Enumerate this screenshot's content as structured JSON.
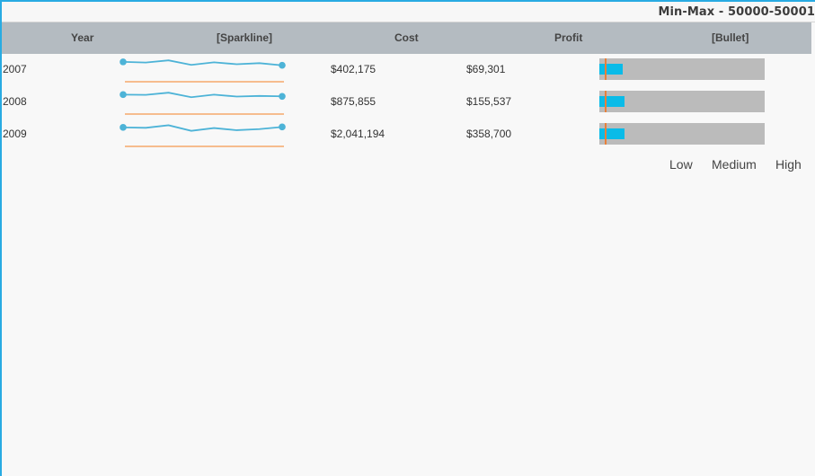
{
  "title": "Min-Max - 50000-50001",
  "columns": [
    "Year",
    "[Sparkline]",
    "Cost",
    "Profit",
    "[Bullet]"
  ],
  "rows": [
    {
      "year": "2007",
      "cost": "$402,175",
      "profit": "$69,301",
      "sparkline": [
        0.88,
        0.85,
        0.95,
        0.74,
        0.86,
        0.77,
        0.82,
        0.72
      ],
      "bullet_value": 0.14,
      "bullet_target": 0.03
    },
    {
      "year": "2008",
      "cost": "$875,855",
      "profit": "$155,537",
      "sparkline": [
        0.86,
        0.85,
        0.95,
        0.74,
        0.86,
        0.77,
        0.8,
        0.78
      ],
      "bullet_value": 0.15,
      "bullet_target": 0.03
    },
    {
      "year": "2009",
      "cost": "$2,041,194",
      "profit": "$358,700",
      "sparkline": [
        0.84,
        0.82,
        0.94,
        0.68,
        0.81,
        0.71,
        0.76,
        0.86
      ],
      "bullet_value": 0.15,
      "bullet_target": 0.03
    }
  ],
  "legend": [
    "Low",
    "Medium",
    "High"
  ],
  "colors": {
    "frame_border": "#29abe2",
    "header_bg": "#b4bbc1",
    "sparkline": "#4db3d7",
    "sparkline_baseline": "#f5a76b",
    "bullet_bg": "#bbbbbb",
    "bullet_bar": "#0abbe8",
    "bullet_target": "#e8803a"
  }
}
